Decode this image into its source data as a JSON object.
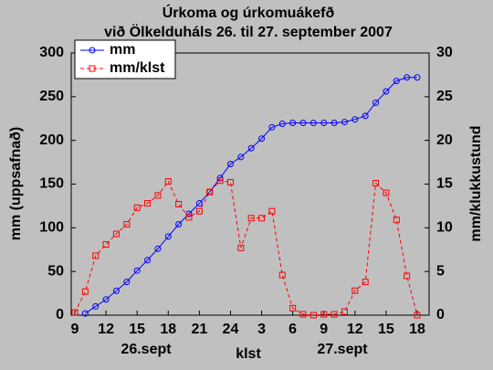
{
  "chart_data": {
    "type": "line",
    "title": "Úrkoma og úrkomuákefð",
    "subtitle": "við Ölkelduháls 26. til 27. september 2007",
    "x_label": "klst",
    "y_label": "mm (uppsafnað)",
    "y2_label": "mm/klukkustund",
    "annotations": [
      "26.sept",
      "27.sept"
    ],
    "categories": [
      "9",
      null,
      null,
      "12",
      null,
      null,
      "15",
      null,
      null,
      "18",
      null,
      null,
      "21",
      null,
      null,
      "24",
      null,
      null,
      "3",
      null,
      null,
      "6",
      null,
      null,
      "9",
      null,
      null,
      "12",
      null,
      null,
      "15",
      null,
      null,
      "18"
    ],
    "series": [
      {
        "name": "mm",
        "color": "#0000ff",
        "marker": "circle",
        "dashed": false,
        "values": [
          null,
          2,
          10,
          18,
          28,
          38,
          51,
          63,
          76,
          90,
          104,
          116,
          128,
          141,
          157,
          173,
          181,
          191,
          202,
          215,
          219,
          220,
          220,
          220,
          220,
          220,
          221,
          224,
          228,
          243,
          256,
          268,
          272,
          272
        ]
      },
      {
        "name": "mm/klst",
        "color": "#ff0000",
        "marker": "square",
        "dashed": true,
        "axis": "y2",
        "values": [
          0.3,
          2.7,
          6.8,
          8.1,
          9.3,
          10.4,
          12.3,
          12.8,
          13.7,
          15.3,
          12.7,
          11.2,
          11.9,
          14.1,
          15.4,
          15.2,
          7.7,
          11.1,
          11.1,
          11.9,
          4.6,
          0.8,
          0.1,
          0,
          0.1,
          0.1,
          0.4,
          2.8,
          3.8,
          15.1,
          14,
          10.9,
          4.5,
          0
        ]
      }
    ],
    "ylim": [
      0,
      300
    ],
    "yticks": [
      0,
      50,
      100,
      150,
      200,
      250,
      300
    ],
    "y2lim": [
      0,
      30
    ],
    "y2ticks": [
      0,
      5,
      10,
      15,
      20,
      25,
      30
    ],
    "legend": "upper left",
    "grid": false
  }
}
